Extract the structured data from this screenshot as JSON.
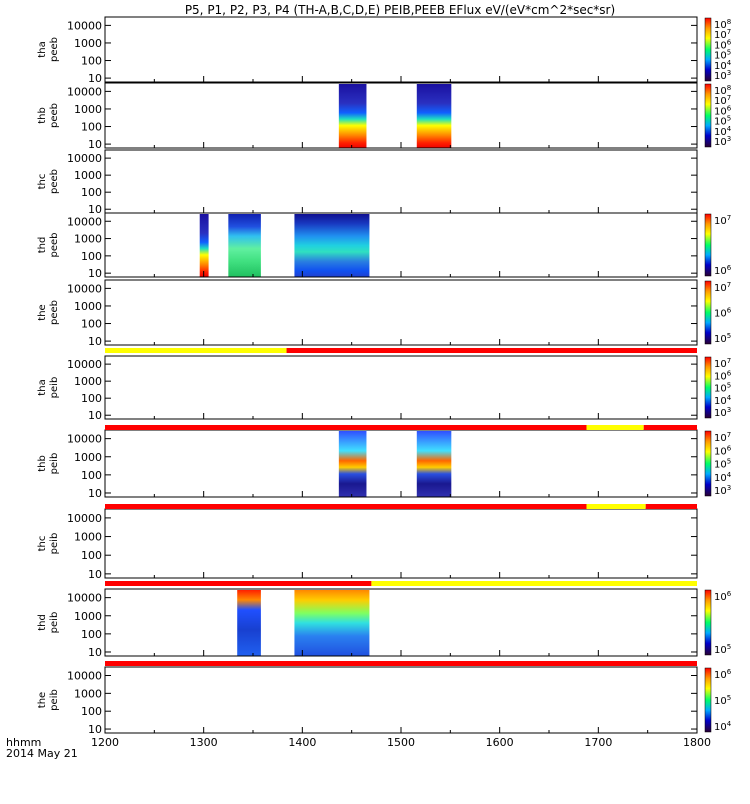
{
  "title": "P5, P1, P2, P3, P4 (TH-A,B,C,D,E) PEIB,PEEB EFlux eV/(eV*cm^2*sec*sr)",
  "footer": {
    "time_label": "hhmm",
    "date_label": "2014 May 21"
  },
  "chart_data": {
    "type": "heatmap",
    "x_ticks": [
      1200,
      1300,
      1400,
      1500,
      1600,
      1700,
      1800
    ],
    "xlim": [
      1200,
      1800
    ],
    "y_ticks": [
      "10",
      "100",
      "1000",
      "10000"
    ],
    "y_scale": "log",
    "ylim": [
      6,
      30000
    ],
    "flag_colors": {
      "red": "#ff0000",
      "yellow": "#ffff00"
    },
    "panels": [
      {
        "probe": "tha",
        "product": "peeb",
        "colorbar": [
          "10^8",
          "10^7",
          "10^6",
          "10^5",
          "10^4",
          "10^3"
        ],
        "blocks": []
      },
      {
        "probe": "thb",
        "product": "peeb",
        "colorbar": [
          "10^8",
          "10^7",
          "10^6",
          "10^5",
          "10^4",
          "10^3"
        ],
        "blocks": [
          {
            "x": [
              1437,
              1465
            ],
            "style": "electron_burst"
          },
          {
            "x": [
              1516,
              1551
            ],
            "style": "electron_burst"
          }
        ]
      },
      {
        "probe": "thc",
        "product": "peeb",
        "colorbar": [],
        "blocks": []
      },
      {
        "probe": "thd",
        "product": "peeb",
        "colorbar": [
          "10^7",
          "10^6"
        ],
        "blocks": [
          {
            "x": [
              1296,
              1305
            ],
            "style": "electron_burst"
          },
          {
            "x": [
              1325,
              1358
            ],
            "style": "electron_cool"
          },
          {
            "x": [
              1392,
              1468
            ],
            "style": "electron_wide"
          }
        ]
      },
      {
        "probe": "the",
        "product": "peeb",
        "colorbar": [
          "10^7",
          "10^6",
          "10^5"
        ],
        "blocks": []
      },
      {
        "probe": "tha",
        "product": "peib",
        "colorbar": [
          "10^7",
          "10^6",
          "10^5",
          "10^4",
          "10^3"
        ],
        "blocks": []
      },
      {
        "probe": "thb",
        "product": "peib",
        "colorbar": [
          "10^7",
          "10^6",
          "10^5",
          "10^4",
          "10^3"
        ],
        "blocks": [
          {
            "x": [
              1437,
              1465
            ],
            "style": "ion_burst"
          },
          {
            "x": [
              1516,
              1551
            ],
            "style": "ion_burst"
          }
        ]
      },
      {
        "probe": "thc",
        "product": "peib",
        "colorbar": [],
        "blocks": []
      },
      {
        "probe": "thd",
        "product": "peib",
        "colorbar": [
          "10^6",
          "10^5"
        ],
        "blocks": [
          {
            "x": [
              1334,
              1358
            ],
            "style": "ion_hot"
          },
          {
            "x": [
              1392,
              1468
            ],
            "style": "ion_wide"
          }
        ]
      },
      {
        "probe": "the",
        "product": "peib",
        "colorbar": [
          "10^6",
          "10^5",
          "10^4"
        ],
        "blocks": []
      }
    ],
    "mode_bars": [
      {
        "segments": [
          {
            "x": [
              1200,
              1384
            ],
            "color": "yellow"
          },
          {
            "x": [
              1384,
              1800
            ],
            "color": "red"
          }
        ]
      },
      {
        "segments": [
          {
            "x": [
              1200,
              1688
            ],
            "color": "red"
          },
          {
            "x": [
              1688,
              1746
            ],
            "color": "yellow"
          },
          {
            "x": [
              1746,
              1800
            ],
            "color": "red"
          }
        ]
      },
      {
        "segments": [
          {
            "x": [
              1200,
              1688
            ],
            "color": "red"
          },
          {
            "x": [
              1688,
              1748
            ],
            "color": "yellow"
          },
          {
            "x": [
              1748,
              1800
            ],
            "color": "red"
          }
        ]
      },
      {
        "segments": [
          {
            "x": [
              1200,
              1470
            ],
            "color": "red"
          },
          {
            "x": [
              1470,
              1800
            ],
            "color": "yellow"
          }
        ]
      },
      {
        "segments": [
          {
            "x": [
              1200,
              1800
            ],
            "color": "red"
          }
        ]
      }
    ]
  }
}
